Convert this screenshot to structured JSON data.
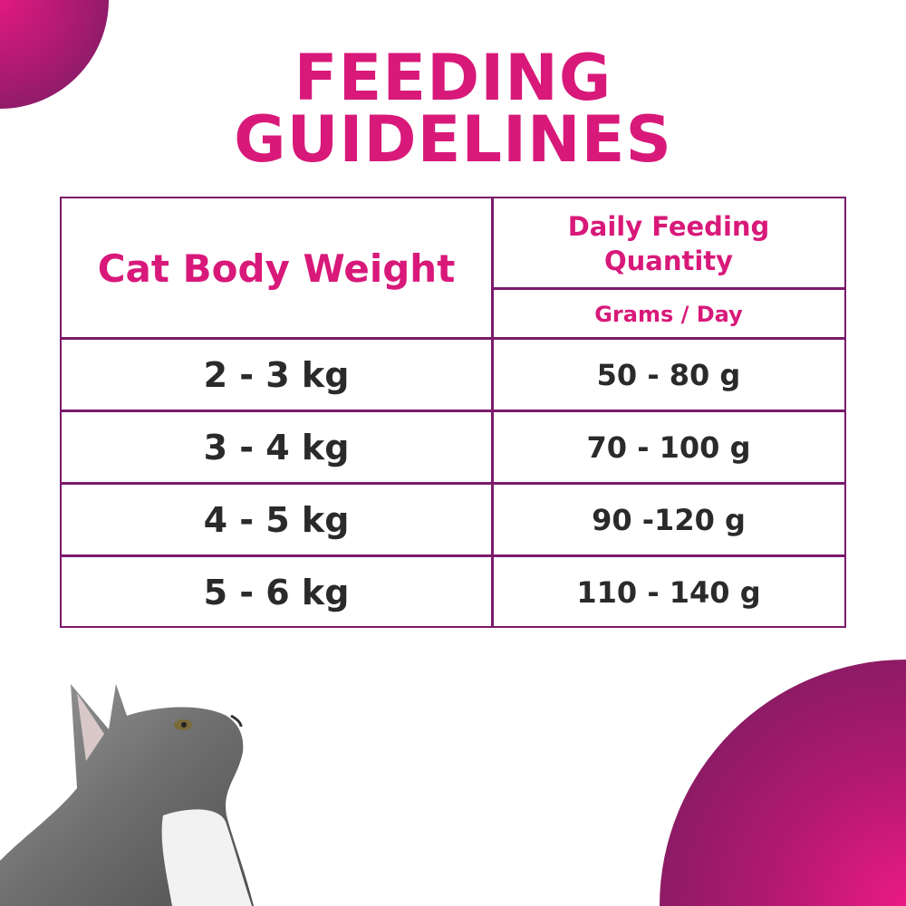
{
  "title_line1": "FEEDING",
  "title_line2": "GUIDELINES",
  "table": {
    "header_weight": "Cat Body Weight",
    "header_quantity": "Daily Feeding Quantity",
    "header_unit": "Grams / Day",
    "rows": [
      {
        "weight": "2 - 3 kg",
        "quantity": "50 - 80 g"
      },
      {
        "weight": "3 - 4 kg",
        "quantity": "70 - 100 g"
      },
      {
        "weight": "4 - 5 kg",
        "quantity": "90 -120 g"
      },
      {
        "weight": "5 - 6 kg",
        "quantity": "110 - 140 g"
      }
    ]
  },
  "colors": {
    "accent": "#d8197a",
    "border": "#7b1a6b",
    "text": "#2a2a2a"
  },
  "image": "kitten-looking-up"
}
